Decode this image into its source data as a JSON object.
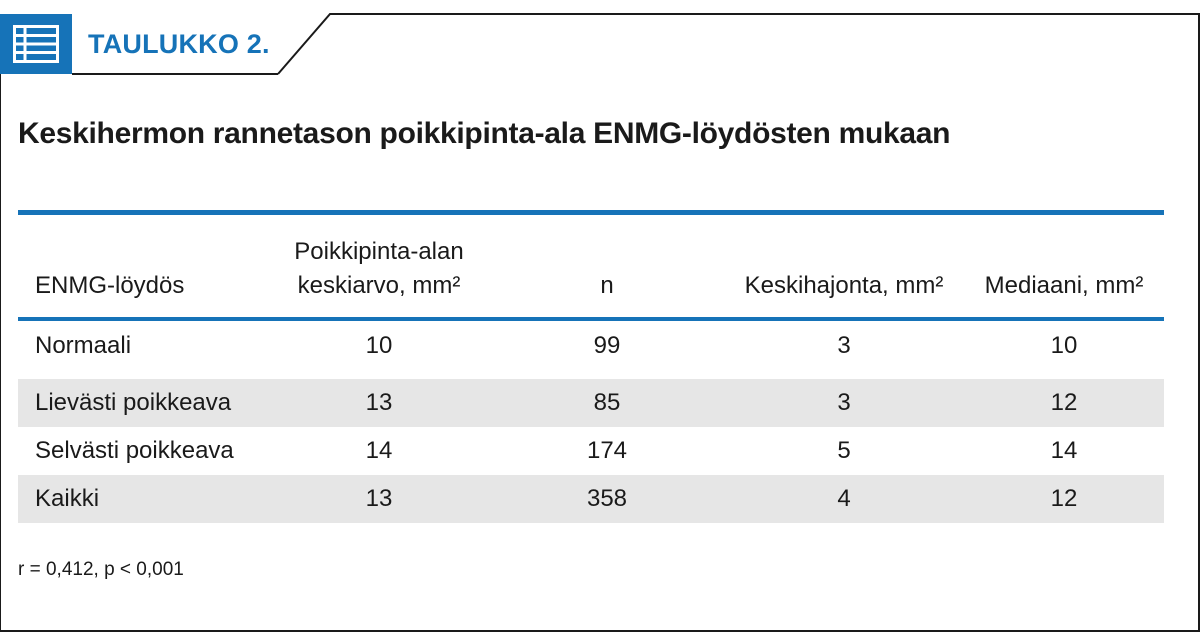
{
  "header": {
    "label": "TAULUKKO 2.",
    "icon": "table-icon",
    "accent_color": "#1673b8"
  },
  "title": "Keskihermon rannetason poikkipinta-ala ENMG-löydösten mukaan",
  "table": {
    "columns": [
      {
        "line1": "",
        "line2": "ENMG-löydös"
      },
      {
        "line1": "Poikkipinta-alan",
        "line2": "keskiarvo, mm²"
      },
      {
        "line1": "",
        "line2": "n"
      },
      {
        "line1": "",
        "line2": "Keskihajonta, mm²"
      },
      {
        "line1": "",
        "line2": "Mediaani, mm²"
      }
    ],
    "rows": [
      [
        "Normaali",
        "10",
        "99",
        "3",
        "10"
      ],
      [
        "Lievästi poikkeava",
        "13",
        "85",
        "3",
        "12"
      ],
      [
        "Selvästi poikkeava",
        "14",
        "174",
        "5",
        "14"
      ],
      [
        "Kaikki",
        "13",
        "358",
        "4",
        "12"
      ]
    ]
  },
  "footnote": "r = 0,412, p < 0,001"
}
